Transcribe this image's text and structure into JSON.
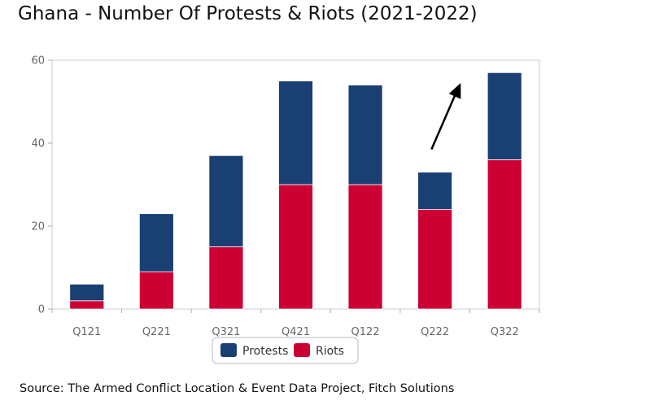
{
  "title": "Ghana - Number Of Protests & Riots (2021-2022)",
  "source": "Source: The Armed Conflict Location & Event Data Project, Fitch Solutions",
  "chart_data": {
    "type": "bar",
    "stacked": true,
    "categories": [
      "Q121",
      "Q221",
      "Q321",
      "Q421",
      "Q122",
      "Q222",
      "Q322"
    ],
    "series": [
      {
        "name": "Riots",
        "color": "#cc0033",
        "values": [
          2,
          9,
          15,
          30,
          30,
          24,
          36
        ]
      },
      {
        "name": "Protests",
        "color": "#1a3f73",
        "values": [
          4,
          14,
          22,
          25,
          24,
          9,
          21
        ]
      }
    ],
    "ylim": [
      0,
      60
    ],
    "yticks": [
      0,
      20,
      40,
      60
    ],
    "grid": false,
    "legend": {
      "placement": "bottom-center",
      "order": [
        "Protests",
        "Riots"
      ]
    },
    "annotation": "upward arrow"
  }
}
